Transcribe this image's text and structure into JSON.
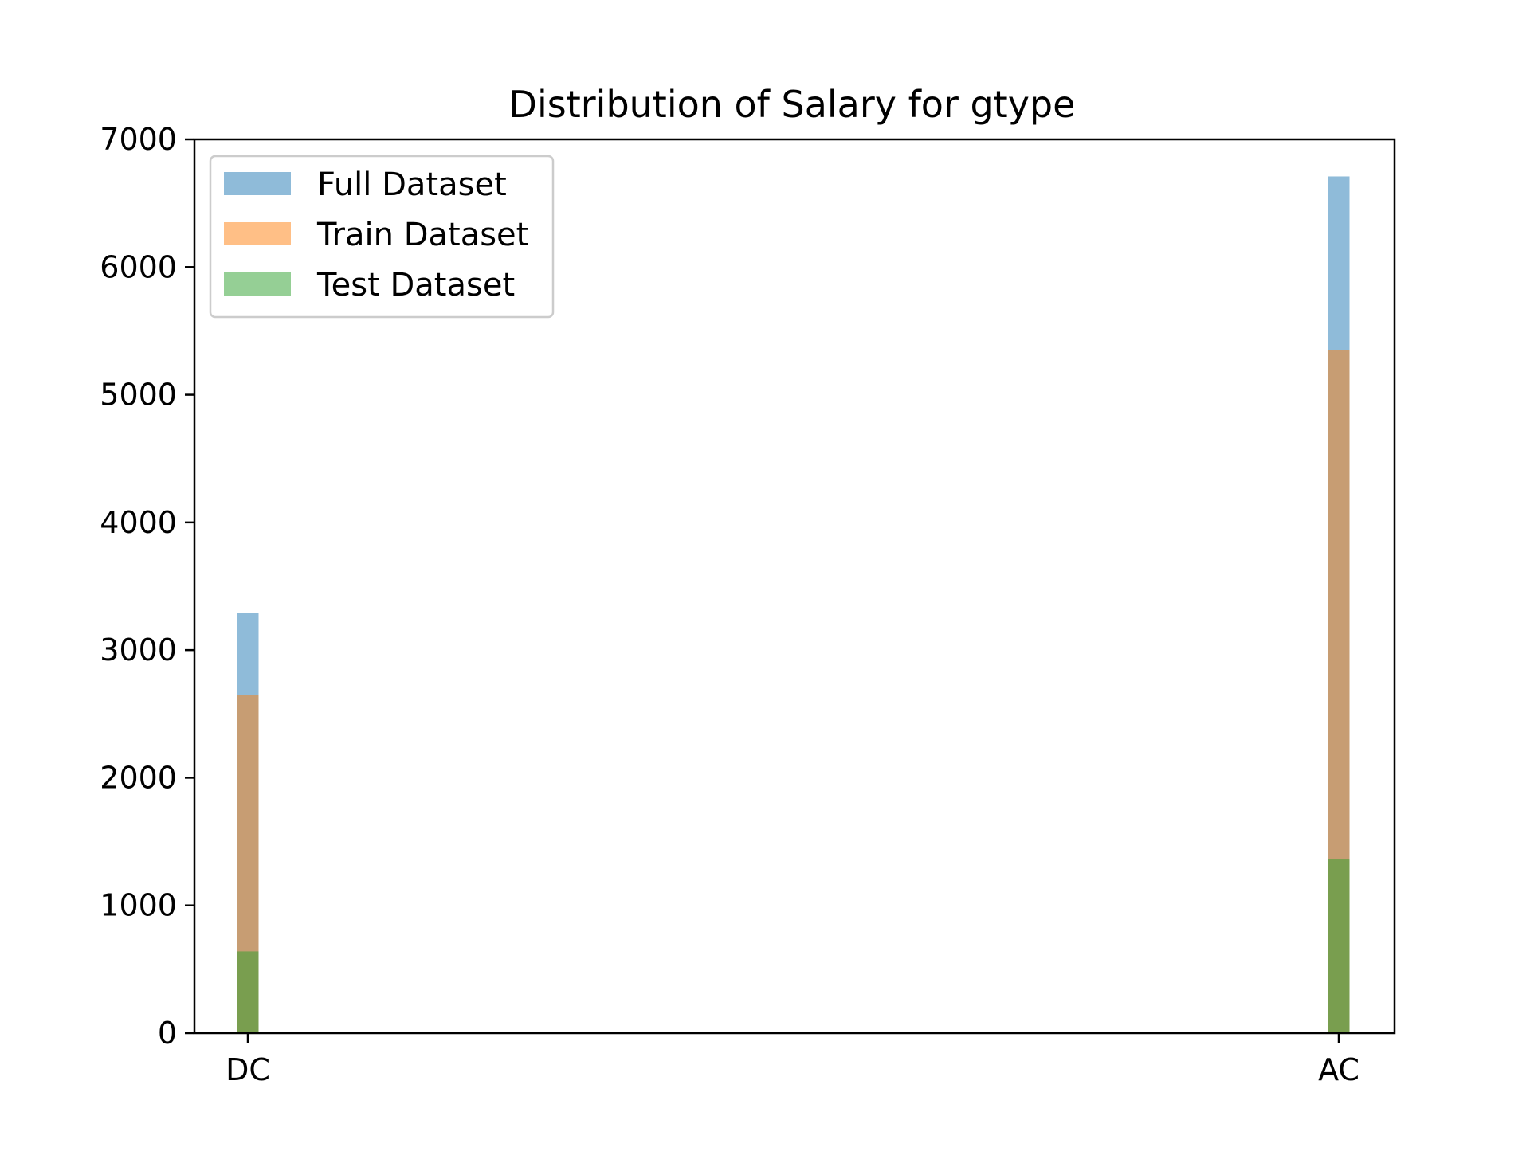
{
  "chart_data": {
    "type": "bar",
    "title": "Distribution of Salary for gtype",
    "xlabel": "",
    "ylabel": "",
    "categories": [
      "DC",
      "AC"
    ],
    "series": [
      {
        "name": "Full Dataset",
        "values": [
          3290,
          6710
        ],
        "color": "#1f77b4",
        "opacity": 0.5
      },
      {
        "name": "Train Dataset",
        "values": [
          2650,
          5350
        ],
        "color": "#ff7f0e",
        "opacity": 0.5
      },
      {
        "name": "Test Dataset",
        "values": [
          640,
          1360
        ],
        "color": "#2ca02c",
        "opacity": 0.5
      }
    ],
    "ylim": [
      0,
      7000
    ],
    "yticks": [
      0,
      1000,
      2000,
      3000,
      4000,
      5000,
      6000,
      7000
    ],
    "grid": false,
    "legend_position": "top-left"
  }
}
